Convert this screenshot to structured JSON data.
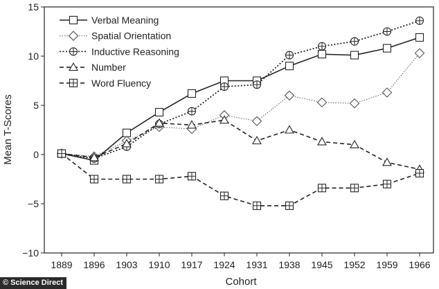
{
  "chart_data": {
    "type": "line",
    "xlabel": "Cohort",
    "ylabel": "Mean T-Scores",
    "categories": [
      "1889",
      "1896",
      "1903",
      "1910",
      "1917",
      "1924",
      "1931",
      "1938",
      "1945",
      "1952",
      "1959",
      "1966"
    ],
    "ylim": [
      -10,
      15
    ],
    "yticks": [
      -10,
      -5,
      0,
      5,
      10,
      15
    ],
    "grid": false,
    "legend_position": "top-left",
    "series": [
      {
        "name": "Verbal Meaning",
        "marker": "square",
        "dash": "solid",
        "color": "#222222",
        "values": [
          0.1,
          -0.6,
          2.2,
          4.3,
          6.2,
          7.5,
          7.5,
          9.0,
          10.2,
          10.1,
          10.8,
          11.9
        ]
      },
      {
        "name": "Spatial Orientation",
        "marker": "diamond",
        "dash": "dotted-fine",
        "color": "#555555",
        "values": [
          0.1,
          -0.2,
          1.4,
          2.8,
          2.6,
          4.0,
          3.4,
          6.0,
          5.3,
          5.2,
          6.3,
          10.3
        ]
      },
      {
        "name": "Inductive Reasoning",
        "marker": "circle-plus",
        "dash": "dotted",
        "color": "#222222",
        "values": [
          0.1,
          -0.4,
          0.8,
          3.1,
          4.4,
          6.9,
          7.1,
          10.1,
          11.0,
          11.5,
          12.5,
          13.6
        ]
      },
      {
        "name": "Number",
        "marker": "triangle",
        "dash": "dashed",
        "color": "#222222",
        "values": [
          0.1,
          -0.3,
          1.1,
          3.2,
          3.0,
          3.5,
          1.4,
          2.5,
          1.3,
          1.0,
          -0.8,
          -1.5
        ]
      },
      {
        "name": "Word Fluency",
        "marker": "square-plus",
        "dash": "dashed",
        "color": "#222222",
        "values": [
          0.1,
          -2.5,
          -2.5,
          -2.5,
          -2.2,
          -4.2,
          -5.2,
          -5.2,
          -3.4,
          -3.4,
          -3.0,
          -1.9
        ]
      }
    ]
  },
  "watermark": {
    "text": "© Science Direct"
  }
}
